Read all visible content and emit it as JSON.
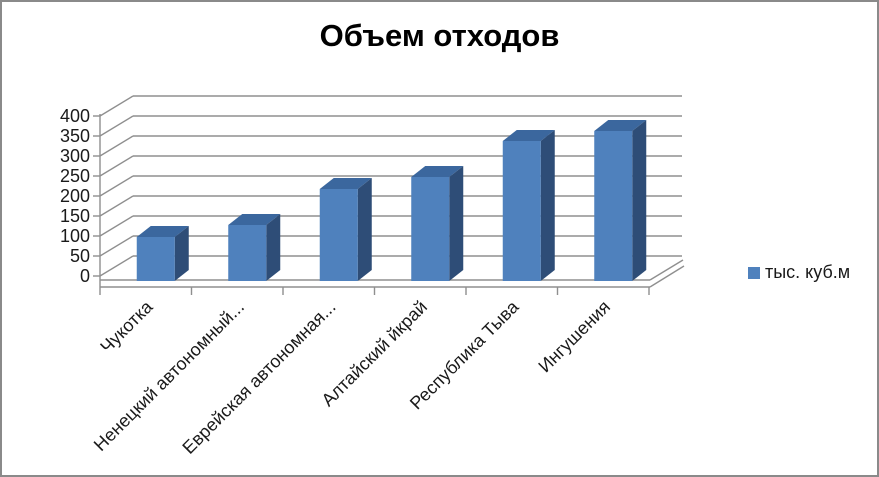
{
  "frame": {
    "border_color": "#8a8a8a",
    "background": "#ffffff"
  },
  "chart_data": {
    "type": "bar",
    "style": "3d-column",
    "title": "Объем отходов",
    "categories": [
      "Чукотка",
      "Ненецкий автономный...",
      "Еврейская автономная...",
      "Алтайский йкрай",
      "Республика Тыва",
      "Ингушения"
    ],
    "series": [
      {
        "name": "тыс. куб.м",
        "values": [
          110,
          140,
          230,
          260,
          350,
          375
        ]
      }
    ],
    "xlabel": "",
    "ylabel": "",
    "ylim": [
      0,
      400
    ],
    "ytick_step": 50,
    "ytick_labels": [
      "0",
      "50",
      "100",
      "150",
      "200",
      "250",
      "300",
      "350",
      "400"
    ],
    "grid": true,
    "legend_position": "right",
    "category_label_rotation_deg": -45,
    "colors": {
      "bar_front": "#4F81BD",
      "bar_top": "#3B679E",
      "bar_side": "#2E4D77",
      "gridline": "#8F8F8F",
      "axis_text": "#1a1a1a",
      "title_color": "#000000"
    }
  }
}
